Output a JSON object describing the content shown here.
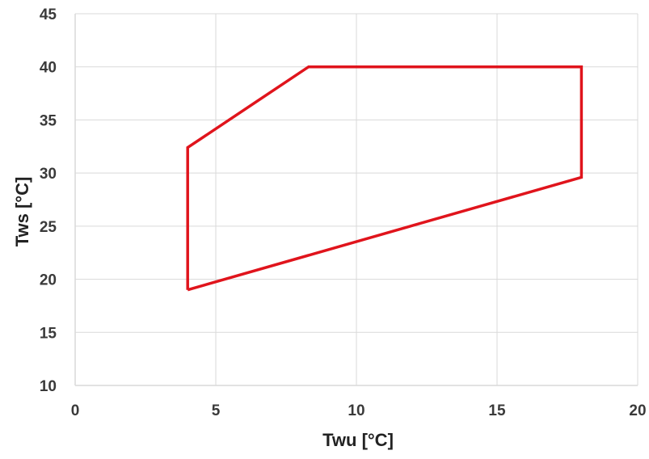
{
  "chart_data": {
    "type": "line",
    "title": "",
    "xlabel": "Twu [°C]",
    "ylabel": "Tws [°C]",
    "xlim": [
      0,
      20
    ],
    "ylim": [
      10,
      45
    ],
    "xticks": [
      0,
      5,
      10,
      15,
      20
    ],
    "yticks": [
      10,
      15,
      20,
      25,
      30,
      35,
      40,
      45
    ],
    "grid": true,
    "legend": "none",
    "series": [
      {
        "color": "#e0141c",
        "closed": true,
        "points": [
          {
            "x": 4,
            "y": 19
          },
          {
            "x": 18,
            "y": 29.6
          },
          {
            "x": 18,
            "y": 40
          },
          {
            "x": 8.3,
            "y": 40
          },
          {
            "x": 4,
            "y": 32.4
          },
          {
            "x": 4,
            "y": 19
          }
        ]
      }
    ]
  }
}
